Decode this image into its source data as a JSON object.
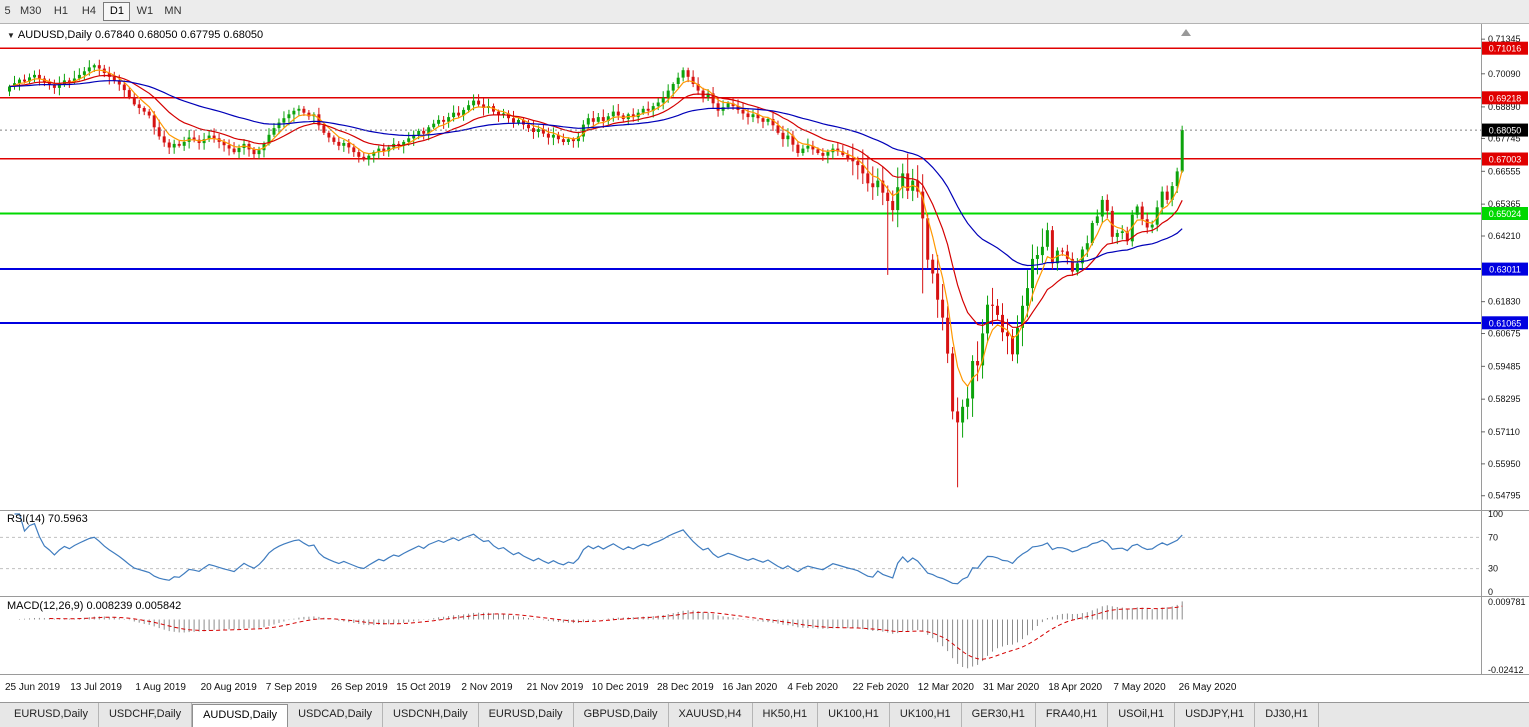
{
  "toolbar": {
    "timeframes": [
      {
        "label": "5",
        "active": false
      },
      {
        "label": "M30",
        "active": false
      },
      {
        "label": "H1",
        "active": false
      },
      {
        "label": "H4",
        "active": false
      },
      {
        "label": "D1",
        "active": true
      },
      {
        "label": "W1",
        "active": false
      },
      {
        "label": "MN",
        "active": false
      }
    ]
  },
  "chart": {
    "symbol_label": "AUDUSD,Daily",
    "ohlc_text": "0.67840 0.68050 0.67795 0.68050"
  },
  "current_price": {
    "label": "0.68050",
    "price": 0.6805
  },
  "rsi": {
    "label": "RSI(14)",
    "value": "70.5963",
    "axis_labels": [
      "100",
      "70",
      "30",
      "0"
    ]
  },
  "macd": {
    "label": "MACD(12,26,9)",
    "values": "0.008239 0.005842",
    "axis_top": "0.009781",
    "axis_bottom": "-0.02412"
  },
  "tabs": [
    {
      "label": "EURUSD,Daily",
      "selected": false
    },
    {
      "label": "USDCHF,Daily",
      "selected": false
    },
    {
      "label": "AUDUSD,Daily",
      "selected": true
    },
    {
      "label": "USDCAD,Daily",
      "selected": false
    },
    {
      "label": "USDCNH,Daily",
      "selected": false
    },
    {
      "label": "EURUSD,Daily",
      "selected": false
    },
    {
      "label": "GBPUSD,Daily",
      "selected": false
    },
    {
      "label": "XAUUSD,H4",
      "selected": false
    },
    {
      "label": "HK50,H1",
      "selected": false
    },
    {
      "label": "UK100,H1",
      "selected": false
    },
    {
      "label": "UK100,H1",
      "selected": false
    },
    {
      "label": "GER30,H1",
      "selected": false
    },
    {
      "label": "FRA40,H1",
      "selected": false
    },
    {
      "label": "USOil,H1",
      "selected": false
    },
    {
      "label": "USDJPY,H1",
      "selected": false
    },
    {
      "label": "DJ30,H1",
      "selected": false
    }
  ],
  "chart_data": {
    "type": "candlestick",
    "symbol": "AUDUSD",
    "timeframe": "Daily",
    "title": "AUDUSD,Daily",
    "last_ohlc": {
      "open": 0.6784,
      "high": 0.6805,
      "low": 0.67795,
      "close": 0.6805
    },
    "ylim": [
      0.5435,
      0.7175
    ],
    "y_tick_labels": [
      "0.71345",
      "0.70090",
      "0.68890",
      "0.67745",
      "0.66555",
      "0.65365",
      "0.64210",
      "0.61830",
      "0.60675",
      "0.59485",
      "0.58295",
      "0.57110",
      "0.55950",
      "0.54795"
    ],
    "x_tick_labels": [
      "25 Jun 2019",
      "13 Jul 2019",
      "1 Aug 2019",
      "20 Aug 2019",
      "7 Sep 2019",
      "26 Sep 2019",
      "15 Oct 2019",
      "2 Nov 2019",
      "21 Nov 2019",
      "10 Dec 2019",
      "28 Dec 2019",
      "16 Jan 2020",
      "4 Feb 2020",
      "22 Feb 2020",
      "12 Mar 2020",
      "31 Mar 2020",
      "18 Apr 2020",
      "7 May 2020",
      "26 May 2020"
    ],
    "level_lines": [
      {
        "label": "0.71016",
        "price": 0.71016,
        "color": "#e00000",
        "width": 1.5
      },
      {
        "label": "0.69218",
        "price": 0.69218,
        "color": "#e00000",
        "width": 1.5
      },
      {
        "label": "0.67003",
        "price": 0.67003,
        "color": "#e00000",
        "width": 1.5
      },
      {
        "label": "0.65024",
        "price": 0.65024,
        "color": "#00d800",
        "width": 2
      },
      {
        "label": "0.63011",
        "price": 0.63011,
        "color": "#0000e0",
        "width": 2
      },
      {
        "label": "0.61065",
        "price": 0.61065,
        "color": "#0000e0",
        "width": 2
      }
    ],
    "indicators": [
      {
        "name": "RSI",
        "period": 14,
        "last_value": 70.5963,
        "levels": [
          70,
          30
        ]
      },
      {
        "name": "MACD",
        "params": "12,26,9",
        "last_values": [
          0.008239,
          0.005842
        ]
      }
    ],
    "first_open": 0.6945,
    "wick_overrides": {
      "17": {
        "high": 0.7046
      },
      "135": {
        "high": 0.7032
      },
      "176": {
        "low": 0.628
      },
      "183": {
        "low": 0.6213
      },
      "190": {
        "low": 0.551
      },
      "235": {
        "high": 0.6821,
        "low": 0.665
      }
    },
    "closes": [
      0.6963,
      0.6975,
      0.6988,
      0.6981,
      0.6996,
      0.7005,
      0.6992,
      0.6978,
      0.697,
      0.6958,
      0.6972,
      0.6985,
      0.6978,
      0.6992,
      0.7005,
      0.7018,
      0.7032,
      0.704,
      0.7028,
      0.7012,
      0.6998,
      0.6985,
      0.697,
      0.695,
      0.6925,
      0.6898,
      0.6885,
      0.6872,
      0.6858,
      0.6815,
      0.6782,
      0.676,
      0.6742,
      0.6755,
      0.6748,
      0.6762,
      0.6778,
      0.677,
      0.6758,
      0.6772,
      0.6785,
      0.6775,
      0.6762,
      0.675,
      0.6738,
      0.6725,
      0.674,
      0.6755,
      0.6735,
      0.6718,
      0.6732,
      0.6755,
      0.6788,
      0.6812,
      0.6832,
      0.6848,
      0.6862,
      0.6875,
      0.6882,
      0.6868,
      0.6855,
      0.6862,
      0.6822,
      0.6795,
      0.6778,
      0.6762,
      0.6748,
      0.6758,
      0.6742,
      0.6725,
      0.6708,
      0.6698,
      0.6712,
      0.6725,
      0.6738,
      0.6728,
      0.6742,
      0.6755,
      0.6748,
      0.6762,
      0.6775,
      0.6788,
      0.6802,
      0.6792,
      0.6815,
      0.6828,
      0.6842,
      0.6835,
      0.6852,
      0.6868,
      0.6858,
      0.6878,
      0.6895,
      0.6912,
      0.6898,
      0.6885,
      0.6892,
      0.6872,
      0.6858,
      0.6865,
      0.6848,
      0.6832,
      0.6842,
      0.6825,
      0.6812,
      0.6798,
      0.6808,
      0.6792,
      0.6778,
      0.6788,
      0.6772,
      0.6762,
      0.6772,
      0.6765,
      0.6782,
      0.6825,
      0.6848,
      0.6835,
      0.6852,
      0.6838,
      0.6855,
      0.6872,
      0.6858,
      0.6845,
      0.6862,
      0.6852,
      0.6868,
      0.6882,
      0.6875,
      0.6892,
      0.6905,
      0.6922,
      0.6948,
      0.6972,
      0.6995,
      0.7022,
      0.6998,
      0.6972,
      0.6948,
      0.6925,
      0.6938,
      0.6902,
      0.6875,
      0.6888,
      0.6902,
      0.6892,
      0.6878,
      0.6865,
      0.6852,
      0.6862,
      0.6848,
      0.6835,
      0.6845,
      0.6822,
      0.6795,
      0.6772,
      0.6785,
      0.6752,
      0.6722,
      0.6738,
      0.6748,
      0.6735,
      0.6722,
      0.6712,
      0.6725,
      0.6738,
      0.6728,
      0.6715,
      0.6702,
      0.6692,
      0.6678,
      0.6648,
      0.6612,
      0.6598,
      0.6622,
      0.6578,
      0.6548,
      0.6515,
      0.6598,
      0.6648,
      0.6585,
      0.6622,
      0.6582,
      0.6485,
      0.6335,
      0.6285,
      0.619,
      0.6125,
      0.5995,
      0.5785,
      0.5745,
      0.5802,
      0.5832,
      0.5968,
      0.5952,
      0.6068,
      0.6172,
      0.6168,
      0.6135,
      0.6072,
      0.6058,
      0.5992,
      0.6088,
      0.6168,
      0.6232,
      0.6338,
      0.6352,
      0.6382,
      0.6442,
      0.6322,
      0.6368,
      0.6365,
      0.6338,
      0.6292,
      0.6322,
      0.6372,
      0.6395,
      0.6468,
      0.6492,
      0.6552,
      0.6512,
      0.6418,
      0.6432,
      0.6438,
      0.6402,
      0.6498,
      0.6528,
      0.6482,
      0.6452,
      0.6462,
      0.6525,
      0.6582,
      0.6552,
      0.6602,
      0.6655,
      0.6805
    ]
  }
}
